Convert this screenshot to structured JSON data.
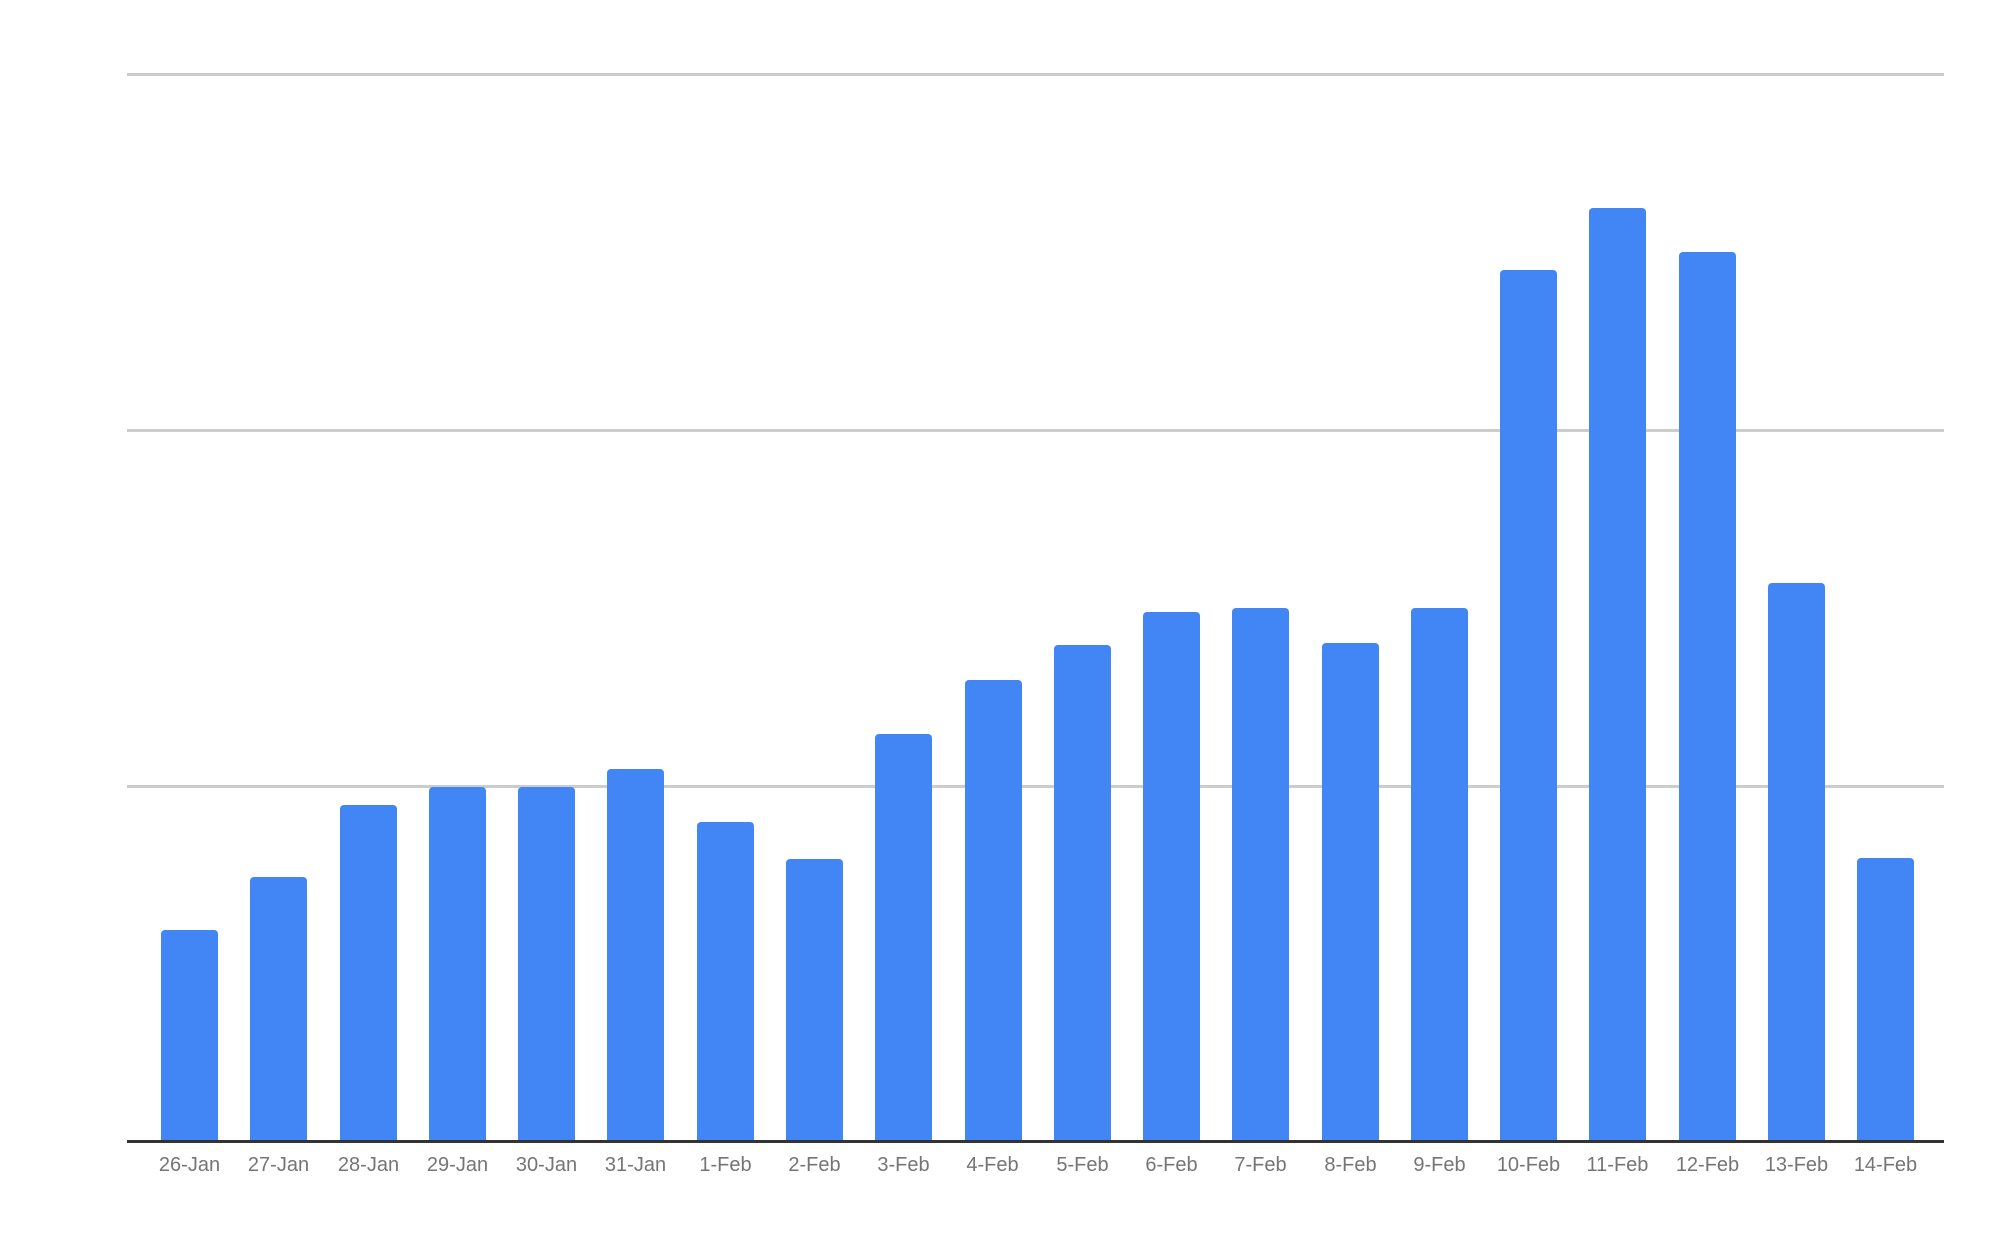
{
  "chart_data": {
    "type": "bar",
    "title": "",
    "xlabel": "",
    "ylabel": "",
    "categories": [
      "26-Jan",
      "27-Jan",
      "28-Jan",
      "29-Jan",
      "30-Jan",
      "31-Jan",
      "1-Feb",
      "2-Feb",
      "3-Feb",
      "4-Feb",
      "5-Feb",
      "6-Feb",
      "7-Feb",
      "8-Feb",
      "9-Feb",
      "10-Feb",
      "11-Feb",
      "12-Feb",
      "13-Feb",
      "14-Feb"
    ],
    "series": [
      {
        "name": "bars",
        "values": [
          0.596,
          0.744,
          0.947,
          0.997,
          0.997,
          1.048,
          0.899,
          0.795,
          1.146,
          1.298,
          1.396,
          1.489,
          1.5,
          1.402,
          1.5,
          2.449,
          2.624,
          2.5,
          1.57,
          0.798
        ]
      }
    ],
    "ylim": [
      0,
      3
    ],
    "y_axis_labels_visible": false,
    "gridlines_y": [
      1,
      2,
      3
    ],
    "grid": true,
    "legend_position": "none"
  },
  "colors": {
    "bar_fill": "#4285f4",
    "gridline": "#cccccc",
    "axis_line": "#333333",
    "tick_label_text": "#757575",
    "background": "#ffffff"
  }
}
